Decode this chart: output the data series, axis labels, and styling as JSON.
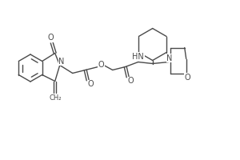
{
  "bg_color": "#ffffff",
  "line_color": "#4a4a4a",
  "line_width": 1.0,
  "font_size": 6.5,
  "figsize": [
    3.0,
    2.0
  ],
  "dpi": 100,
  "xlim": [
    0,
    300
  ],
  "ylim": [
    0,
    200
  ]
}
